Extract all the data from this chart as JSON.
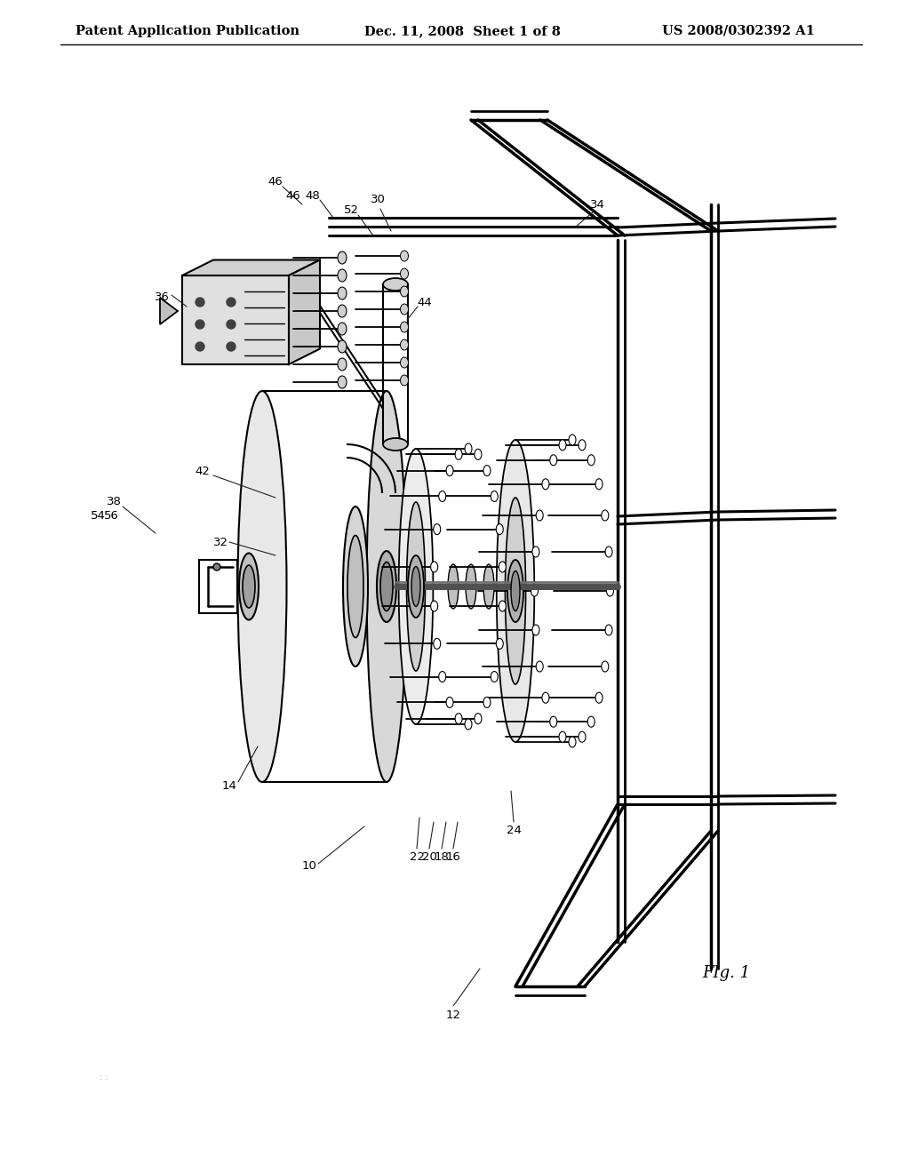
{
  "header_left": "Patent Application Publication",
  "header_mid": "Dec. 11, 2008  Sheet 1 of 8",
  "header_right": "US 2008/0302392 A1",
  "fig_label": "FIg. 1",
  "background_color": "#ffffff",
  "line_color": "#000000",
  "header_fontsize": 10.5,
  "label_fontsize": 9.5,
  "fig_label_fontsize": 13
}
